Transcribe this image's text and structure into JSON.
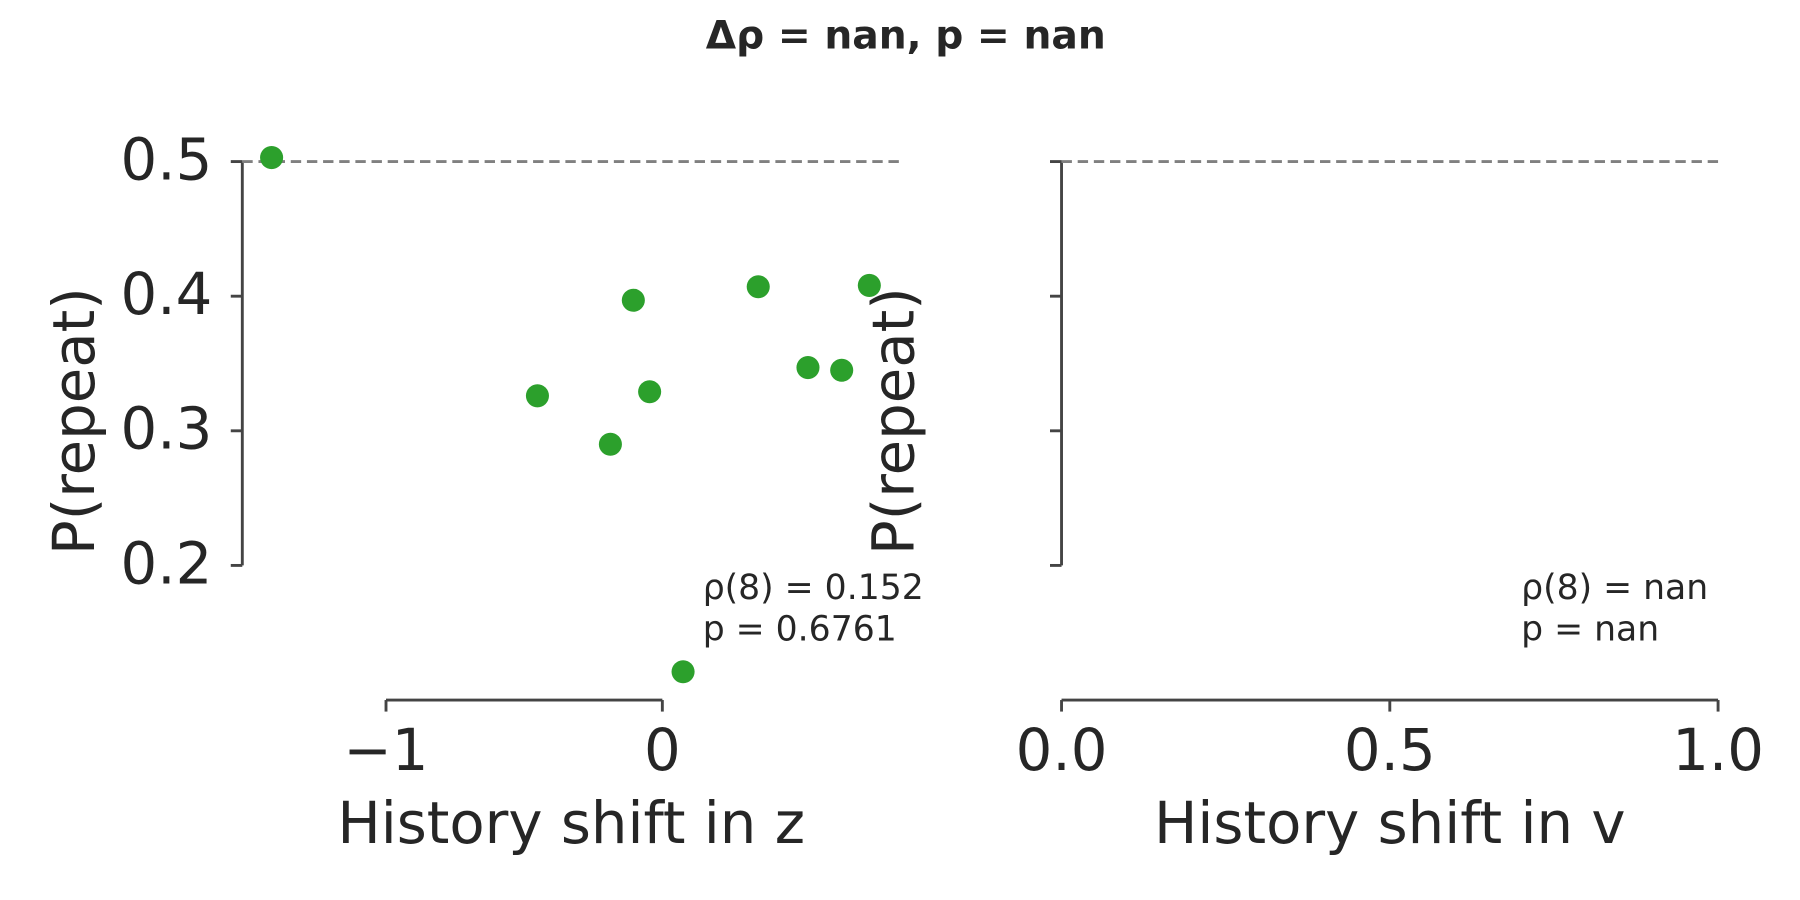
{
  "title": "Δρ = nan, p = nan",
  "chart_data": [
    {
      "type": "scatter",
      "xlabel": "History shift in z",
      "ylabel": "P(repeat)",
      "x": [
        -1.414,
        -0.452,
        -0.188,
        -0.105,
        -0.046,
        0.075,
        0.347,
        0.527,
        0.649,
        0.749
      ],
      "values": [
        0.503,
        0.326,
        0.29,
        0.397,
        0.329,
        0.121,
        0.407,
        0.347,
        0.345,
        0.408
      ],
      "color": "#2ca02c",
      "xlim": [
        -1.52,
        0.86
      ],
      "ylim": [
        0.1,
        0.52
      ],
      "xticks": [
        {
          "value": -1,
          "label": "−1"
        },
        0
      ],
      "yticks": [
        0.2,
        0.3,
        0.4,
        0.5
      ],
      "show_ytick_labels": true,
      "reference_line": 0.5,
      "annotation": [
        "ρ(8) = 0.152",
        "p = 0.6761"
      ]
    },
    {
      "type": "scatter",
      "xlabel": "History shift in v",
      "ylabel": "P(repeat)",
      "x": [],
      "values": [],
      "color": "#2ca02c",
      "xlim": [
        0,
        1
      ],
      "ylim": [
        0.1,
        0.52
      ],
      "xticks": [
        {
          "value": 0,
          "label": "0.0"
        },
        0.5,
        {
          "value": 1,
          "label": "1.0"
        }
      ],
      "yticks": [
        0.2,
        0.3,
        0.4,
        0.5
      ],
      "show_ytick_labels": false,
      "reference_line": 0.5,
      "annotation": [
        "ρ(8) = nan",
        "p = nan"
      ]
    }
  ]
}
